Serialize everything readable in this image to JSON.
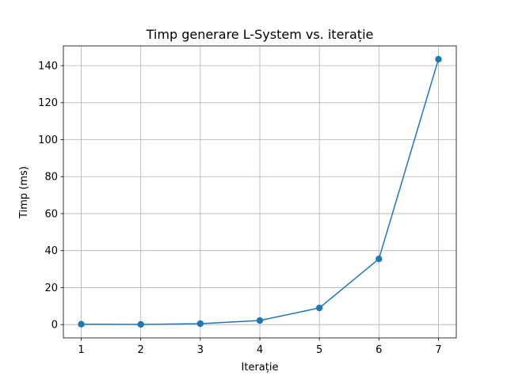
{
  "chart_data": {
    "type": "line",
    "title": "Timp generare L-System vs. iterație",
    "xlabel": "Iterație",
    "ylabel": "Timp (ms)",
    "x": [
      1,
      2,
      3,
      4,
      5,
      6,
      7
    ],
    "series": [
      {
        "values": [
          0.2,
          0.1,
          0.5,
          2.2,
          9.0,
          35.5,
          143.5
        ],
        "color": "#1f77b4",
        "marker": "circle"
      }
    ],
    "xticks": [
      "1",
      "2",
      "3",
      "4",
      "5",
      "6",
      "7"
    ],
    "yticks": [
      "0",
      "20",
      "40",
      "60",
      "80",
      "100",
      "120",
      "140"
    ],
    "xlim": [
      0.7,
      7.3
    ],
    "ylim": [
      -7.2,
      150.7
    ],
    "grid": true,
    "legend": "none"
  }
}
